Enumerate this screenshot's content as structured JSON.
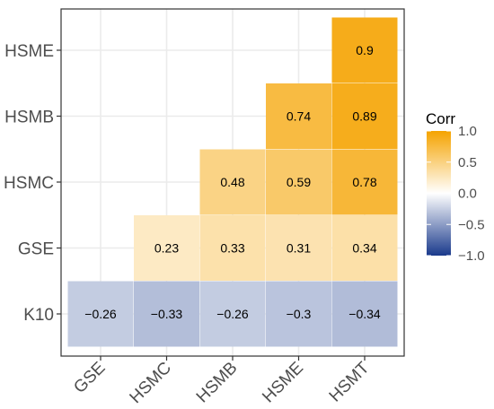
{
  "chart_data": {
    "type": "heatmap",
    "x_categories": [
      "GSE",
      "HSMC",
      "HSMB",
      "HSME",
      "HSMT"
    ],
    "y_categories": [
      "K10",
      "GSE",
      "HSMC",
      "HSMB",
      "HSME"
    ],
    "cells": [
      {
        "x": "GSE",
        "y": "K10",
        "value": -0.26,
        "label": "−0.26"
      },
      {
        "x": "HSMC",
        "y": "K10",
        "value": -0.33,
        "label": "−0.33"
      },
      {
        "x": "HSMB",
        "y": "K10",
        "value": -0.26,
        "label": "−0.26"
      },
      {
        "x": "HSME",
        "y": "K10",
        "value": -0.3,
        "label": "−0.3"
      },
      {
        "x": "HSMT",
        "y": "K10",
        "value": -0.34,
        "label": "−0.34"
      },
      {
        "x": "HSMC",
        "y": "GSE",
        "value": 0.23,
        "label": "0.23"
      },
      {
        "x": "HSMB",
        "y": "GSE",
        "value": 0.33,
        "label": "0.33"
      },
      {
        "x": "HSME",
        "y": "GSE",
        "value": 0.31,
        "label": "0.31"
      },
      {
        "x": "HSMT",
        "y": "GSE",
        "value": 0.34,
        "label": "0.34"
      },
      {
        "x": "HSMB",
        "y": "HSMC",
        "value": 0.48,
        "label": "0.48"
      },
      {
        "x": "HSME",
        "y": "HSMC",
        "value": 0.59,
        "label": "0.59"
      },
      {
        "x": "HSMT",
        "y": "HSMC",
        "value": 0.78,
        "label": "0.78"
      },
      {
        "x": "HSME",
        "y": "HSMB",
        "value": 0.74,
        "label": "0.74"
      },
      {
        "x": "HSMT",
        "y": "HSMB",
        "value": 0.89,
        "label": "0.89"
      },
      {
        "x": "HSMT",
        "y": "HSME",
        "value": 0.9,
        "label": "0.9"
      }
    ],
    "legend": {
      "title": "Corr",
      "ticks": [
        1.0,
        0.5,
        0.0,
        -0.5,
        -1.0
      ],
      "tick_labels": [
        "1.0",
        "0.5",
        "0.0",
        "−0.5",
        "−1.0"
      ],
      "range": [
        -1,
        1
      ],
      "colors": {
        "low": "#1a3a8c",
        "mid": "#ffffff",
        "high": "#f5a300"
      }
    },
    "grid": true,
    "legend_position": "right"
  }
}
